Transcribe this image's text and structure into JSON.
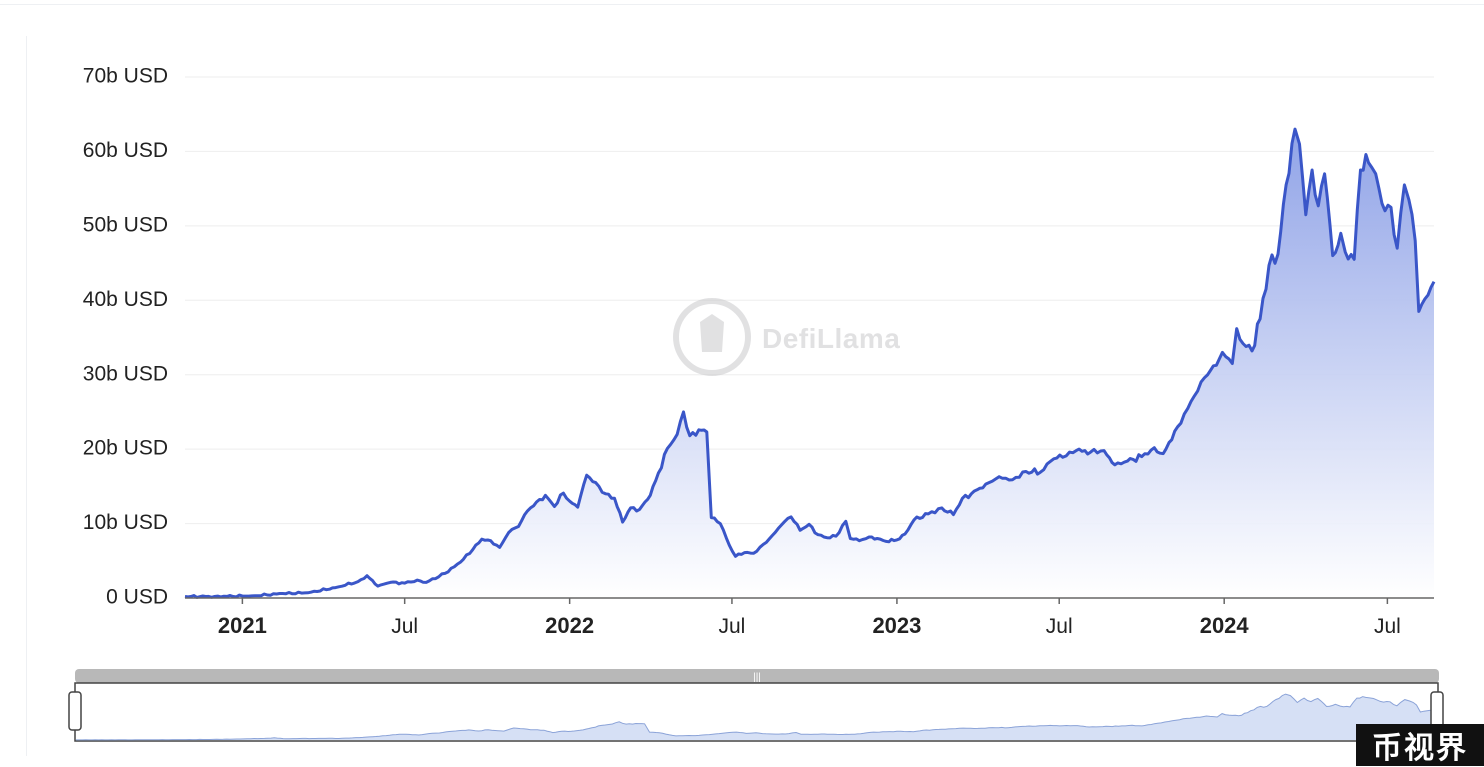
{
  "watermark": {
    "name": "DefiLlama"
  },
  "badge": {
    "text": "币视界"
  },
  "colors": {
    "line": "#3a56c8",
    "area_top": "#8a9ee6",
    "area_bottom": "#ffffff",
    "grid": "#eeeeee",
    "slider_bar": "#b8b8b8"
  },
  "chart_data": {
    "type": "area",
    "y_ticks": [
      {
        "value": 0,
        "label": "0 USD"
      },
      {
        "value": 10,
        "label": "10b USD"
      },
      {
        "value": 20,
        "label": "20b USD"
      },
      {
        "value": 30,
        "label": "30b USD"
      },
      {
        "value": 40,
        "label": "40b USD"
      },
      {
        "value": 50,
        "label": "50b USD"
      },
      {
        "value": 60,
        "label": "60b USD"
      },
      {
        "value": 70,
        "label": "70b USD"
      }
    ],
    "x_ticks": [
      {
        "date": "2021-01-01",
        "label": "2021",
        "major": true
      },
      {
        "date": "2021-07-01",
        "label": "Jul",
        "major": false
      },
      {
        "date": "2022-01-01",
        "label": "2022",
        "major": true
      },
      {
        "date": "2022-07-01",
        "label": "Jul",
        "major": false
      },
      {
        "date": "2023-01-01",
        "label": "2023",
        "major": true
      },
      {
        "date": "2023-07-01",
        "label": "Jul",
        "major": false
      },
      {
        "date": "2024-01-01",
        "label": "2024",
        "major": true
      },
      {
        "date": "2024-07-01",
        "label": "Jul",
        "major": false
      }
    ],
    "xlim": [
      "2020-10-29",
      "2024-08-22"
    ],
    "ylim": [
      0,
      70
    ],
    "grid": true,
    "zoom_slider": true,
    "series": [
      {
        "unit": "b USD",
        "points": [
          [
            "2020-10-29",
            0.2
          ],
          [
            "2020-12-01",
            0.2
          ],
          [
            "2021-01-15",
            0.3
          ],
          [
            "2021-02-15",
            0.6
          ],
          [
            "2021-03-15",
            0.7
          ],
          [
            "2021-04-15",
            1.4
          ],
          [
            "2021-05-10",
            2.2
          ],
          [
            "2021-05-20",
            3.0
          ],
          [
            "2021-06-01",
            1.6
          ],
          [
            "2021-06-15",
            2.1
          ],
          [
            "2021-07-01",
            2.0
          ],
          [
            "2021-07-15",
            2.4
          ],
          [
            "2021-07-25",
            2.1
          ],
          [
            "2021-08-15",
            3.3
          ],
          [
            "2021-09-01",
            4.8
          ],
          [
            "2021-09-15",
            6.5
          ],
          [
            "2021-09-25",
            7.9
          ],
          [
            "2021-10-05",
            7.7
          ],
          [
            "2021-10-15",
            6.8
          ],
          [
            "2021-10-25",
            8.8
          ],
          [
            "2021-11-05",
            9.6
          ],
          [
            "2021-11-15",
            11.7
          ],
          [
            "2021-11-25",
            12.9
          ],
          [
            "2021-12-05",
            13.8
          ],
          [
            "2021-12-15",
            12.3
          ],
          [
            "2021-12-25",
            14.1
          ],
          [
            "2022-01-01",
            13.0
          ],
          [
            "2022-01-10",
            12.2
          ],
          [
            "2022-01-20",
            16.5
          ],
          [
            "2022-01-30",
            15.5
          ],
          [
            "2022-02-10",
            14.0
          ],
          [
            "2022-02-20",
            13.4
          ],
          [
            "2022-03-01",
            10.2
          ],
          [
            "2022-03-10",
            12.1
          ],
          [
            "2022-03-20",
            11.9
          ],
          [
            "2022-04-01",
            13.8
          ],
          [
            "2022-04-10",
            16.8
          ],
          [
            "2022-04-20",
            20.1
          ],
          [
            "2022-05-01",
            22.0
          ],
          [
            "2022-05-08",
            25.0
          ],
          [
            "2022-05-15",
            21.8
          ],
          [
            "2022-05-25",
            22.6
          ],
          [
            "2022-06-03",
            22.3
          ],
          [
            "2022-06-08",
            10.8
          ],
          [
            "2022-06-18",
            10.0
          ],
          [
            "2022-06-28",
            7.1
          ],
          [
            "2022-07-05",
            5.6
          ],
          [
            "2022-07-15",
            6.1
          ],
          [
            "2022-07-25",
            6.0
          ],
          [
            "2022-08-05",
            7.2
          ],
          [
            "2022-08-15",
            8.4
          ],
          [
            "2022-08-25",
            9.8
          ],
          [
            "2022-09-05",
            10.9
          ],
          [
            "2022-09-15",
            9.1
          ],
          [
            "2022-09-25",
            9.9
          ],
          [
            "2022-10-05",
            8.5
          ],
          [
            "2022-10-15",
            8.1
          ],
          [
            "2022-10-25",
            8.3
          ],
          [
            "2022-11-05",
            10.3
          ],
          [
            "2022-11-10",
            8.0
          ],
          [
            "2022-11-20",
            7.7
          ],
          [
            "2022-12-01",
            8.2
          ],
          [
            "2022-12-10",
            8.0
          ],
          [
            "2022-12-20",
            7.6
          ],
          [
            "2023-01-01",
            7.8
          ],
          [
            "2023-01-10",
            8.6
          ],
          [
            "2023-01-20",
            10.5
          ],
          [
            "2023-02-05",
            11.3
          ],
          [
            "2023-02-20",
            12.1
          ],
          [
            "2023-03-05",
            11.2
          ],
          [
            "2023-03-15",
            13.4
          ],
          [
            "2023-03-25",
            14.0
          ],
          [
            "2023-04-10",
            15.3
          ],
          [
            "2023-04-25",
            16.3
          ],
          [
            "2023-05-10",
            15.9
          ],
          [
            "2023-05-25",
            17.0
          ],
          [
            "2023-06-10",
            16.9
          ],
          [
            "2023-06-25",
            18.7
          ],
          [
            "2023-07-05",
            18.9
          ],
          [
            "2023-07-20",
            19.8
          ],
          [
            "2023-08-05",
            19.6
          ],
          [
            "2023-08-20",
            19.8
          ],
          [
            "2023-09-01",
            17.9
          ],
          [
            "2023-09-15",
            18.4
          ],
          [
            "2023-10-01",
            19.0
          ],
          [
            "2023-10-15",
            20.2
          ],
          [
            "2023-10-25",
            19.4
          ],
          [
            "2023-11-10",
            23.0
          ],
          [
            "2023-11-25",
            26.4
          ],
          [
            "2023-12-10",
            29.6
          ],
          [
            "2023-12-20",
            31.2
          ],
          [
            "2023-12-30",
            33.0
          ],
          [
            "2024-01-10",
            31.5
          ],
          [
            "2024-01-15",
            36.2
          ],
          [
            "2024-01-22",
            34.2
          ],
          [
            "2024-02-01",
            33.2
          ],
          [
            "2024-02-10",
            37.5
          ],
          [
            "2024-02-20",
            44.7
          ],
          [
            "2024-03-01",
            46.2
          ],
          [
            "2024-03-10",
            55.5
          ],
          [
            "2024-03-20",
            63.0
          ],
          [
            "2024-03-25",
            61.0
          ],
          [
            "2024-04-01",
            51.5
          ],
          [
            "2024-04-08",
            57.5
          ],
          [
            "2024-04-15",
            52.7
          ],
          [
            "2024-04-22",
            57.0
          ],
          [
            "2024-05-01",
            46.0
          ],
          [
            "2024-05-10",
            49.0
          ],
          [
            "2024-05-15",
            46.5
          ],
          [
            "2024-05-25",
            45.5
          ],
          [
            "2024-06-01",
            57.5
          ],
          [
            "2024-06-10",
            58.5
          ],
          [
            "2024-06-18",
            57.0
          ],
          [
            "2024-06-25",
            53.0
          ],
          [
            "2024-07-05",
            52.5
          ],
          [
            "2024-07-12",
            47.0
          ],
          [
            "2024-07-20",
            55.5
          ],
          [
            "2024-07-25",
            53.5
          ],
          [
            "2024-08-01",
            48.0
          ],
          [
            "2024-08-05",
            38.5
          ],
          [
            "2024-08-12",
            40.2
          ],
          [
            "2024-08-22",
            42.5
          ]
        ]
      }
    ]
  }
}
